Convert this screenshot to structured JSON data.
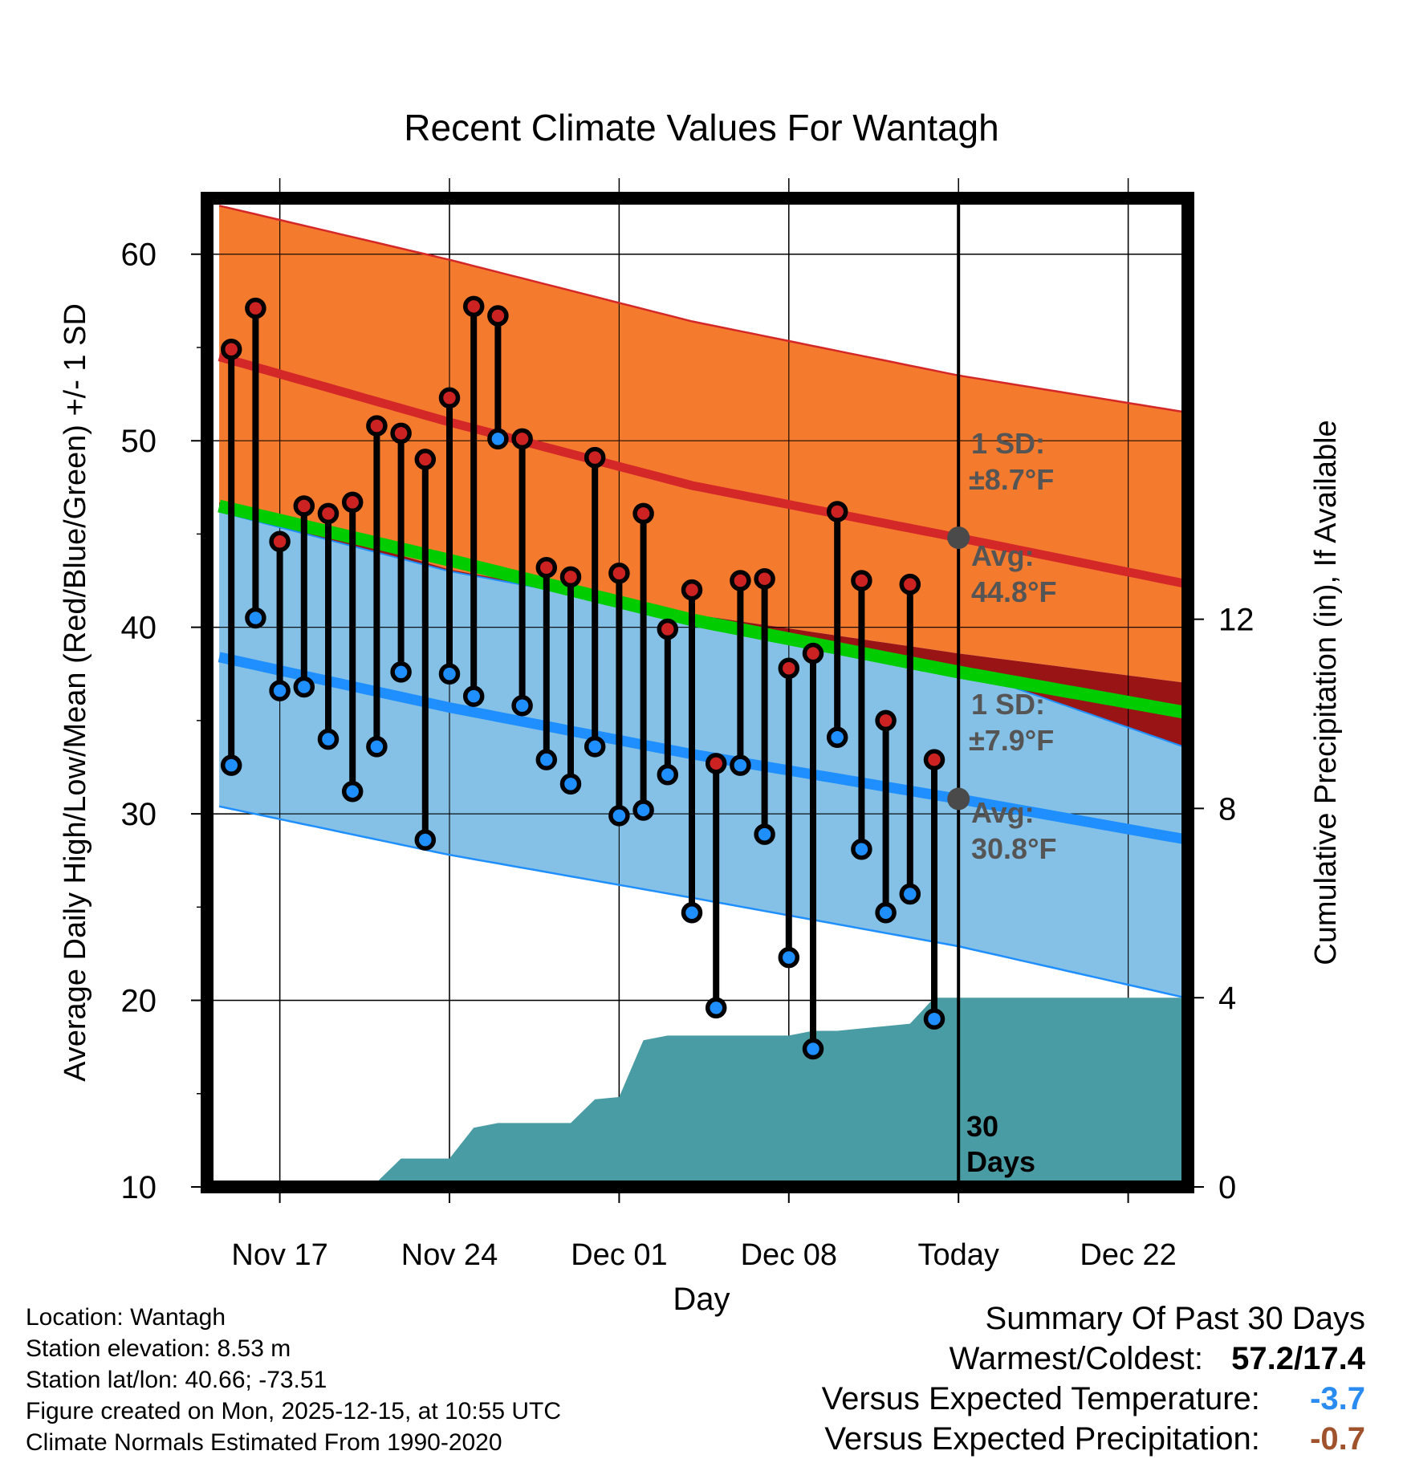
{
  "chart_data": {
    "type": "line",
    "title": "Recent Climate Values For Wantagh",
    "xlabel": "Day",
    "ylabel": "Average Daily High/Low/Mean (Red/Blue/Green) +/- 1 SD",
    "y2label": "Cumulative Precipitation (in), If Available",
    "ylim": [
      10,
      63
    ],
    "y2lim": [
      0,
      20.9
    ],
    "x_tick_labels": [
      "Nov 17",
      "Nov 24",
      "Dec 01",
      "Dec 08",
      "Today",
      "Dec 22"
    ],
    "x_tick_days": [
      3,
      10,
      17,
      24,
      31,
      38
    ],
    "today_day": 31,
    "xlim": [
      0,
      41.5
    ],
    "y_ticks": [
      10,
      20,
      30,
      40,
      50,
      60
    ],
    "y2_ticks": [
      0,
      4,
      8,
      12
    ],
    "normals": {
      "days": [
        0.5,
        10,
        20,
        31,
        40.5
      ],
      "high_avg": [
        54.5,
        51.0,
        47.6,
        44.8,
        42.3
      ],
      "high_upper": [
        62.6,
        59.7,
        56.4,
        53.5,
        51.5
      ],
      "high_lower": [
        46.7,
        43.1,
        40.7,
        38.6,
        37.0
      ],
      "low_avg": [
        38.4,
        35.7,
        33.2,
        30.8,
        28.6
      ],
      "low_upper": [
        46.2,
        43.0,
        40.6,
        37.8,
        33.5
      ],
      "low_lower": [
        30.4,
        27.8,
        25.5,
        22.9,
        20.1
      ],
      "mean_avg": [
        46.5,
        43.6,
        40.4,
        37.6,
        35.4
      ]
    },
    "series": [
      {
        "name": "Daily High",
        "color": "#cc2222",
        "days": [
          1,
          2,
          3,
          4,
          5,
          6,
          7,
          8,
          9,
          10,
          11,
          12,
          13,
          14,
          15,
          16,
          17,
          18,
          19,
          20,
          21,
          22,
          23,
          24,
          25,
          26,
          27,
          28,
          29,
          30
        ],
        "values": [
          54.9,
          57.1,
          44.6,
          46.5,
          46.1,
          46.7,
          50.8,
          50.4,
          49.0,
          52.3,
          57.2,
          56.7,
          50.1,
          43.2,
          42.7,
          49.1,
          42.9,
          46.1,
          39.9,
          42.0,
          32.7,
          42.5,
          42.6,
          37.8,
          38.6,
          46.2,
          42.5,
          35.0,
          42.3,
          32.9
        ]
      },
      {
        "name": "Daily Low",
        "color": "#1f8fff",
        "days": [
          1,
          2,
          3,
          4,
          5,
          6,
          7,
          8,
          9,
          10,
          11,
          12,
          13,
          14,
          15,
          16,
          17,
          18,
          19,
          20,
          21,
          22,
          23,
          24,
          25,
          26,
          27,
          28,
          29,
          30
        ],
        "values": [
          32.6,
          40.5,
          36.6,
          36.8,
          34.0,
          31.2,
          33.6,
          37.6,
          28.6,
          37.5,
          36.3,
          50.1,
          35.8,
          32.9,
          31.6,
          33.6,
          29.9,
          30.2,
          32.1,
          24.7,
          19.6,
          32.6,
          28.9,
          22.3,
          17.4,
          34.1,
          28.1,
          24.7,
          25.7,
          19.0
        ]
      },
      {
        "name": "Cumulative Precipitation",
        "color": "#4a9ca4",
        "days": [
          0.5,
          5,
          7,
          8,
          10,
          11,
          12,
          15,
          16,
          17,
          18,
          19,
          20,
          21,
          22,
          23,
          24,
          25,
          26,
          27,
          28,
          29,
          30,
          31,
          40.5
        ],
        "values": [
          0,
          0,
          0.1,
          0.6,
          0.6,
          1.25,
          1.35,
          1.35,
          1.85,
          1.9,
          3.1,
          3.2,
          3.2,
          3.2,
          3.2,
          3.2,
          3.2,
          3.3,
          3.3,
          3.35,
          3.4,
          3.45,
          4.0,
          4.0,
          4.0
        ]
      }
    ],
    "annotations": {
      "high_sd_title": "1 SD:",
      "high_sd_value": "±8.7°F",
      "high_avg_title": "Avg:",
      "high_avg_value": "44.8°F",
      "low_sd_title": "1 SD:",
      "low_sd_value": "±7.9°F",
      "low_avg_title": "Avg:",
      "low_avg_value": "30.8°F",
      "days_count": "30",
      "days_word": "Days"
    },
    "colors": {
      "high_band": "#f47a2e",
      "high_line": "#d42828",
      "low_band": "#85c1e6",
      "low_line": "#1f8fff",
      "mean_line": "#00cc00",
      "overlap": "#991515",
      "precip": "#4a9ca4",
      "marker_gray": "#4a4a4a"
    }
  },
  "station": {
    "location": "Location: Wantagh",
    "elevation": "Station elevation: 8.53 m",
    "latlon": "Station lat/lon: 40.66; -73.51",
    "created": "Figure created on Mon, 2025-12-15, at 10:55 UTC",
    "normals": "Climate Normals Estimated From 1990-2020"
  },
  "summary": {
    "title": "Summary Of Past 30 Days",
    "warm_cold_label": "Warmest/Coldest:",
    "warm_cold_value": "57.2/17.4",
    "temp_label": "Versus Expected Temperature:",
    "temp_value": "-3.7",
    "temp_color": "#2a8cf0",
    "precip_label": "Versus Expected Precipitation:",
    "precip_value": "-0.7",
    "precip_color": "#a0522d"
  }
}
